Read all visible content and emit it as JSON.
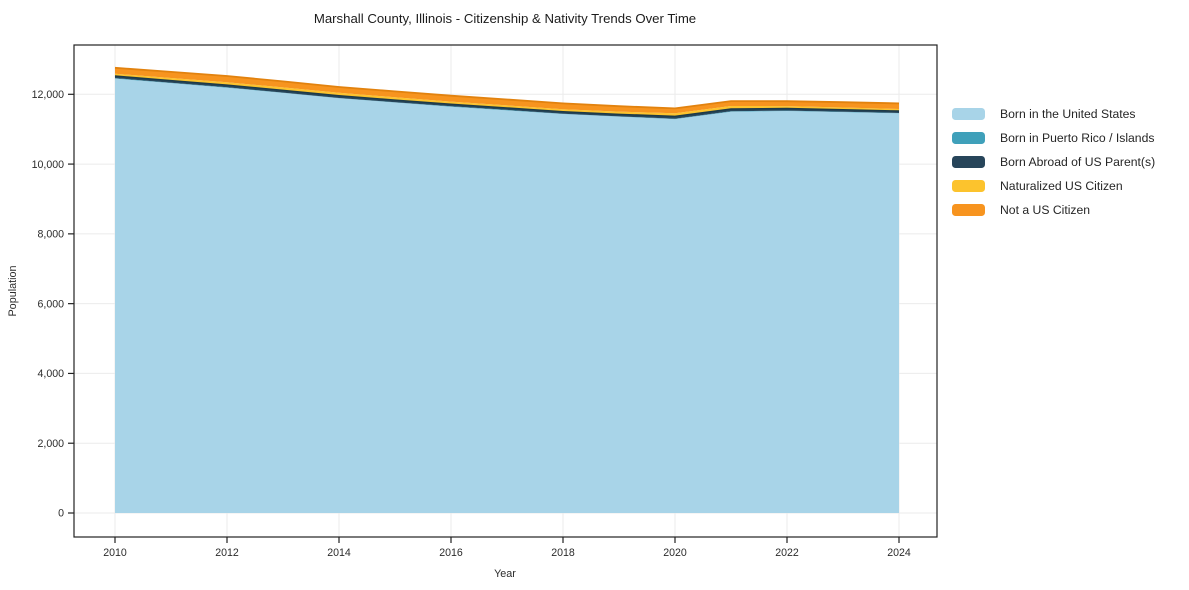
{
  "chart_data": {
    "type": "area",
    "stacked": true,
    "title": "Marshall County, Illinois - Citizenship & Nativity Trends Over Time",
    "xlabel": "Year",
    "ylabel": "Population",
    "x": [
      2010,
      2011,
      2012,
      2013,
      2014,
      2015,
      2016,
      2017,
      2018,
      2019,
      2020,
      2021,
      2022,
      2023,
      2024
    ],
    "x_ticks": [
      2010,
      2012,
      2014,
      2016,
      2018,
      2020,
      2022,
      2024
    ],
    "y_ticks": [
      0,
      2000,
      4000,
      6000,
      8000,
      10000,
      12000
    ],
    "y_tick_labels": [
      "0",
      "2,000",
      "4,000",
      "6,000",
      "8,000",
      "10,000",
      "12,000"
    ],
    "ylim": [
      0,
      13414
    ],
    "grid": true,
    "legend_position": "right",
    "series": [
      {
        "name": "Born in the United States",
        "color": "#a8d4e8",
        "edge": "#8cc0da",
        "values": [
          12450,
          12320,
          12190,
          12040,
          11885,
          11765,
          11645,
          11540,
          11435,
          11360,
          11290,
          11500,
          11520,
          11490,
          11455
        ]
      },
      {
        "name": "Born in Puerto Rico / Islands",
        "color": "#3fa0ba",
        "edge": "#2d8ba3",
        "values": [
          15,
          12,
          10,
          10,
          8,
          8,
          10,
          12,
          10,
          8,
          10,
          15,
          12,
          10,
          10
        ]
      },
      {
        "name": "Born Abroad of US Parent(s)",
        "color": "#27455a",
        "edge": "#1c3a49",
        "values": [
          60,
          62,
          65,
          65,
          67,
          62,
          60,
          58,
          55,
          60,
          70,
          65,
          60,
          58,
          55
        ]
      },
      {
        "name": "Naturalized US Citizen",
        "color": "#fcc32d",
        "edge": "#edb31f",
        "values": [
          65,
          72,
          80,
          82,
          85,
          80,
          75,
          72,
          70,
          75,
          85,
          85,
          70,
          65,
          60
        ]
      },
      {
        "name": "Not a US Citizen",
        "color": "#f7941f",
        "edge": "#e2820e",
        "values": [
          170,
          175,
          180,
          172,
          165,
          168,
          170,
          170,
          170,
          155,
          140,
          140,
          140,
          150,
          160
        ]
      }
    ],
    "colors": {
      "grid": "#ebebeb",
      "axis": "#222222",
      "background": "#ffffff"
    }
  }
}
